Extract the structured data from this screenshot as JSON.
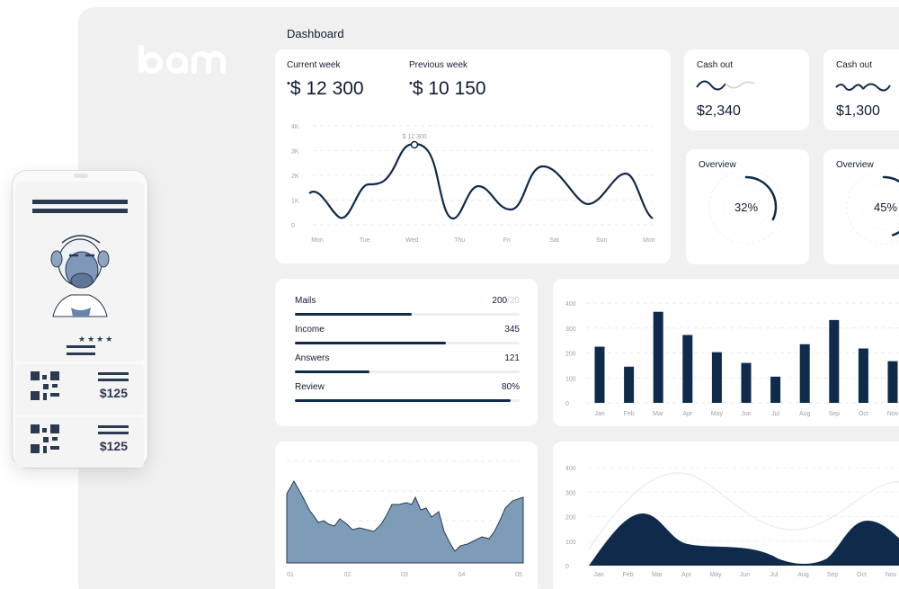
{
  "brand": {
    "logo_text": "bam"
  },
  "dashboard": {
    "title": "Dashboard",
    "current_week": {
      "label": "Current week",
      "value": "$ 12 300"
    },
    "previous_week": {
      "label": "Previous week",
      "value": "$ 10 150"
    },
    "line_chart": {
      "y_ticks": [
        "4K",
        "3K",
        "2K",
        "1K",
        "0"
      ],
      "x_ticks": [
        "Mon",
        "Tue",
        "Wed",
        "Thu",
        "Fri",
        "Sat",
        "Sun",
        "Mon"
      ],
      "peak_label": "$ 12 300"
    },
    "cash_out": [
      {
        "label": "Cash out",
        "value": "$2,340"
      },
      {
        "label": "Cash out",
        "value": "$1,300"
      }
    ],
    "overview": [
      {
        "label": "Overview",
        "percent_text": "32%",
        "percent": 32
      },
      {
        "label": "Overview",
        "percent_text": "45%",
        "percent": 45
      }
    ],
    "stats": [
      {
        "label": "Mails",
        "value": "200",
        "suffix": "/20",
        "fill": 0.52
      },
      {
        "label": "Income",
        "value": "345",
        "suffix": "",
        "fill": 0.67
      },
      {
        "label": "Answers",
        "value": "121",
        "suffix": "",
        "fill": 0.33
      },
      {
        "label": "Review",
        "value": "80%",
        "suffix": "",
        "fill": 0.96
      }
    ]
  },
  "chart_data": [
    {
      "type": "line",
      "x": [
        "Mon",
        "Tue",
        "Wed",
        "Thu",
        "Fri",
        "Sat",
        "Sun",
        "Mon"
      ],
      "y_ticks": [
        "4K",
        "3K",
        "2K",
        "1K",
        "0"
      ],
      "ylim": [
        0,
        4000
      ],
      "annotations": [
        "$ 12 300"
      ]
    },
    {
      "type": "bar",
      "categories": [
        "Jan",
        "Feb",
        "Mar",
        "Apr",
        "May",
        "Jun",
        "Jul",
        "Aug",
        "Sep",
        "Oct",
        "Nov"
      ],
      "values": [
        225,
        145,
        365,
        272,
        203,
        160,
        105,
        235,
        332,
        218,
        167
      ],
      "y_ticks": [
        "400",
        "300",
        "200",
        "100",
        "0"
      ],
      "ylim": [
        0,
        400
      ]
    },
    {
      "type": "area",
      "x": [
        "01",
        "02",
        "03",
        "04",
        "05"
      ]
    },
    {
      "type": "area",
      "categories": [
        "Jan",
        "Feb",
        "Mar",
        "Apr",
        "May",
        "Jun",
        "Jul",
        "Aug",
        "Sep",
        "Oct",
        "Nov"
      ],
      "y_ticks": [
        "400",
        "300",
        "200",
        "100",
        "0"
      ],
      "ylim": [
        0,
        400
      ]
    }
  ],
  "phone": {
    "tickets": [
      {
        "price": "$125"
      },
      {
        "price": "$125"
      }
    ],
    "rating_stars": "★★★★"
  },
  "colors": {
    "navy": "#0f2a4a",
    "steel": "#7d9cb8",
    "panel": "#f0f0f0"
  }
}
